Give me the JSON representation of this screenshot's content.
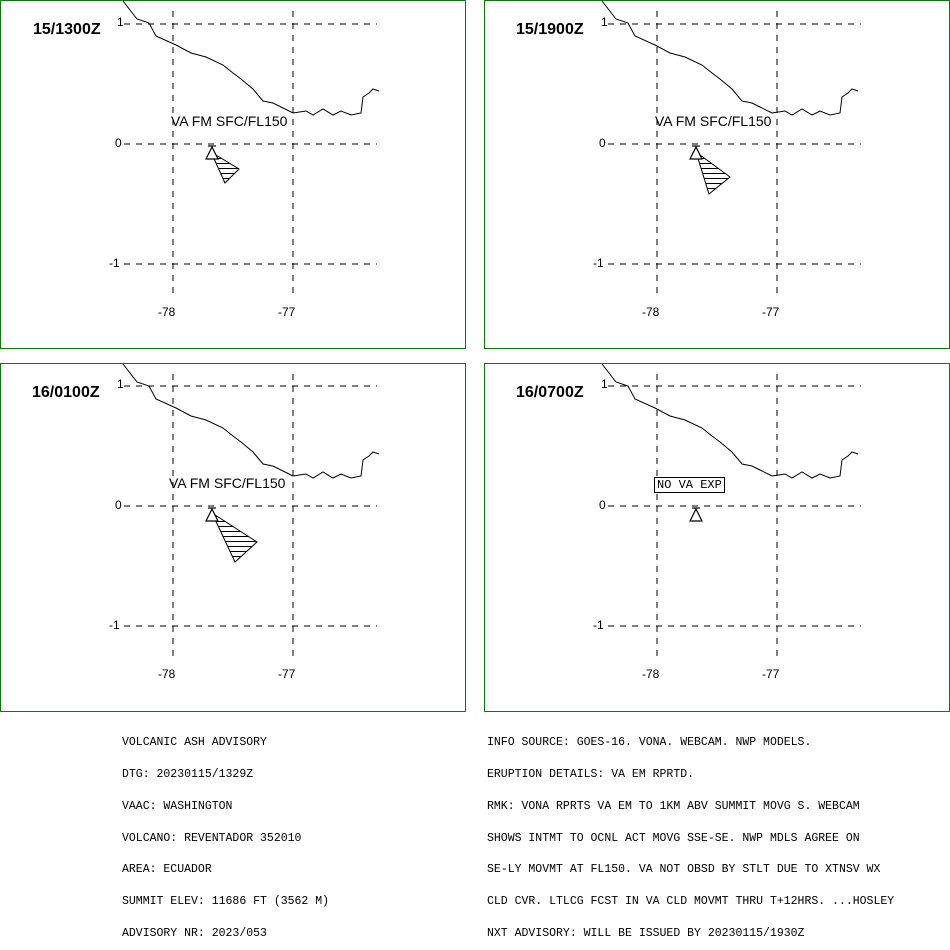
{
  "panels": [
    {
      "time": "15/1300Z",
      "label": "VA FM SFC/FL150",
      "lat_ticks": [
        "1",
        "0",
        "-1"
      ],
      "lon_ticks": [
        "-78",
        "-77"
      ]
    },
    {
      "time": "15/1900Z",
      "label": "VA FM SFC/FL150",
      "lat_ticks": [
        "1",
        "0",
        "-1"
      ],
      "lon_ticks": [
        "-78",
        "-77"
      ]
    },
    {
      "time": "16/0100Z",
      "label": "VA FM SFC/FL150",
      "lat_ticks": [
        "1",
        "0",
        "-1"
      ],
      "lon_ticks": [
        "-78",
        "-77"
      ]
    },
    {
      "time": "16/0700Z",
      "label": "NO VA EXP",
      "lat_ticks": [
        "1",
        "0",
        "-1"
      ],
      "lon_ticks": [
        "-78",
        "-77"
      ]
    }
  ],
  "advisory_left": [
    "VOLCANIC ASH ADVISORY",
    "DTG: 20230115/1329Z",
    "VAAC: WASHINGTON",
    "VOLCANO: REVENTADOR 352010",
    "AREA: ECUADOR",
    "SUMMIT ELEV: 11686 FT (3562 M)",
    "ADVISORY NR: 2023/053"
  ],
  "advisory_right": [
    "INFO SOURCE: GOES-16. VONA. WEBCAM. NWP MODELS.",
    "ERUPTION DETAILS: VA EM RPRTD.",
    "RMK: VONA RPRTS VA EM TO 1KM ABV SUMMIT MOVG S. WEBCAM",
    "SHOWS INTMT TO OCNL ACT MOVG SSE-SE. NWP MDLS AGREE ON",
    "SE-LY MOVMT AT FL150. VA NOT OBSD BY STLT DUE TO XTNSV WX",
    "CLD CVR. LTLCG FCST IN VA CLD MOVMT THRU T+12HRS. ...HOSLEY",
    "NXT ADVISORY: WILL BE ISSUED BY 20230115/1930Z"
  ],
  "colors": {
    "panel_border": "#008000",
    "ink": "#000000"
  }
}
